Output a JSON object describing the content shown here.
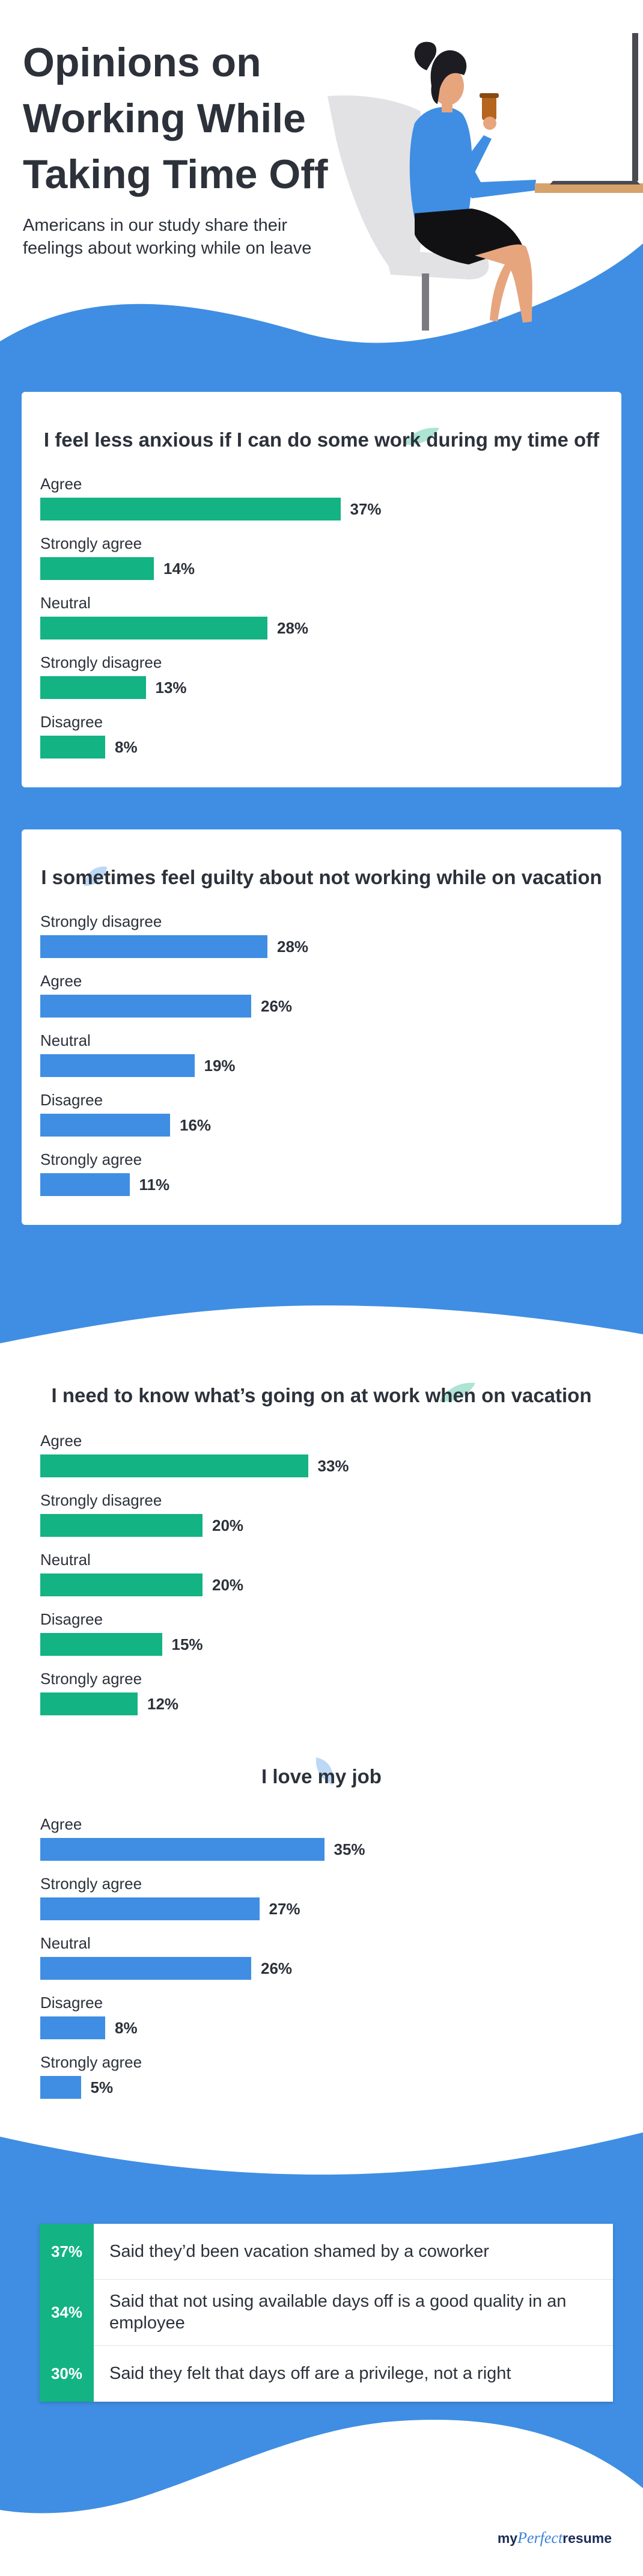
{
  "header": {
    "title_lines": [
      "Opinions on",
      "Working While",
      "Taking Time Off"
    ],
    "subtitle": "Americans in our study share their feelings about working while on leave"
  },
  "colors": {
    "blue": "#3f8ee3",
    "green": "#13b383",
    "text": "#2c313a"
  },
  "chart_data": [
    {
      "type": "bar",
      "title": "I feel less anxious if I can do some work during my time off",
      "categories": [
        "Agree",
        "Strongly agree",
        "Neutral",
        "Strongly disagree",
        "Disagree"
      ],
      "values": [
        37,
        14,
        28,
        13,
        8
      ],
      "value_labels": [
        "37%",
        "14%",
        "28%",
        "13%",
        "8%"
      ],
      "color": "#13b383"
    },
    {
      "type": "bar",
      "title": "I sometimes feel guilty about not working while on vacation",
      "categories": [
        "Strongly disagree",
        "Agree",
        "Neutral",
        "Disagree",
        "Strongly agree"
      ],
      "values": [
        28,
        26,
        19,
        16,
        11
      ],
      "value_labels": [
        "28%",
        "26%",
        "19%",
        "16%",
        "11%"
      ],
      "color": "#3f8ee3"
    },
    {
      "type": "bar",
      "title": "I need to know what’s going on at work when on vacation",
      "categories": [
        "Agree",
        "Strongly disagree",
        "Neutral",
        "Disagree",
        "Strongly agree"
      ],
      "values": [
        33,
        20,
        20,
        15,
        12
      ],
      "value_labels": [
        "33%",
        "20%",
        "20%",
        "15%",
        "12%"
      ],
      "color": "#13b383"
    },
    {
      "type": "bar",
      "title": "I love my job",
      "categories": [
        "Agree",
        "Strongly agree",
        "Neutral",
        "Disagree",
        "Strongly agree"
      ],
      "values": [
        35,
        27,
        26,
        8,
        5
      ],
      "value_labels": [
        "35%",
        "27%",
        "26%",
        "8%",
        "5%"
      ],
      "color": "#3f8ee3"
    }
  ],
  "stats": [
    {
      "pct": "37%",
      "text": "Said they’d been vacation shamed by a coworker"
    },
    {
      "pct": "34%",
      "text": "Said that not using available days off is a good quality in an employee"
    },
    {
      "pct": "30%",
      "text": "Said they felt that days off are a privilege, not a right"
    }
  ],
  "logo": {
    "my": "my",
    "perfect": "Perfect",
    "resume": "resume"
  }
}
